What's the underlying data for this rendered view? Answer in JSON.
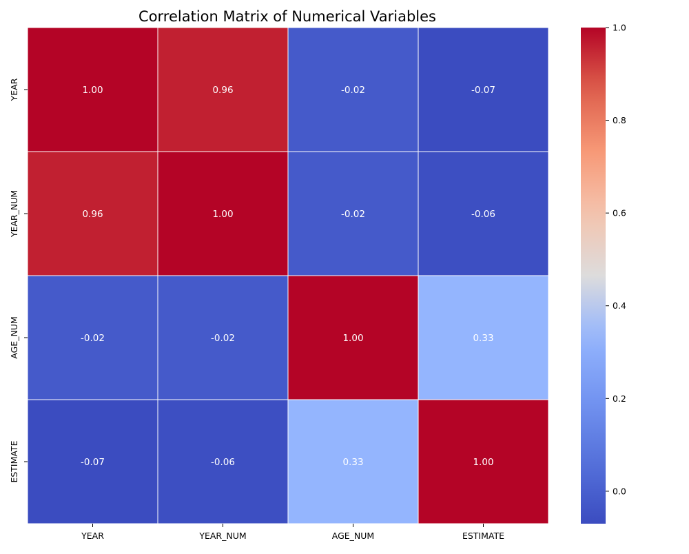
{
  "chart_data": {
    "type": "heatmap",
    "title": "Correlation Matrix of Numerical Variables",
    "rows": [
      "YEAR",
      "YEAR_NUM",
      "AGE_NUM",
      "ESTIMATE"
    ],
    "columns": [
      "YEAR",
      "YEAR_NUM",
      "AGE_NUM",
      "ESTIMATE"
    ],
    "values": [
      [
        1.0,
        0.96,
        -0.02,
        -0.07
      ],
      [
        0.96,
        1.0,
        -0.02,
        -0.06
      ],
      [
        -0.02,
        -0.02,
        1.0,
        0.33
      ],
      [
        -0.07,
        -0.06,
        0.33,
        1.0
      ]
    ],
    "value_format": "0.00",
    "colormap": "coolwarm",
    "color_range": [
      -0.07,
      1.0
    ],
    "colorbar": {
      "ticks": [
        0.0,
        0.2,
        0.4,
        0.6,
        0.8,
        1.0
      ],
      "tick_labels": [
        "0.0",
        "0.2",
        "0.4",
        "0.6",
        "0.8",
        "1.0"
      ]
    },
    "annotation_color": "#ffffff",
    "cell_border_color": "#ffffff",
    "grid": false
  }
}
